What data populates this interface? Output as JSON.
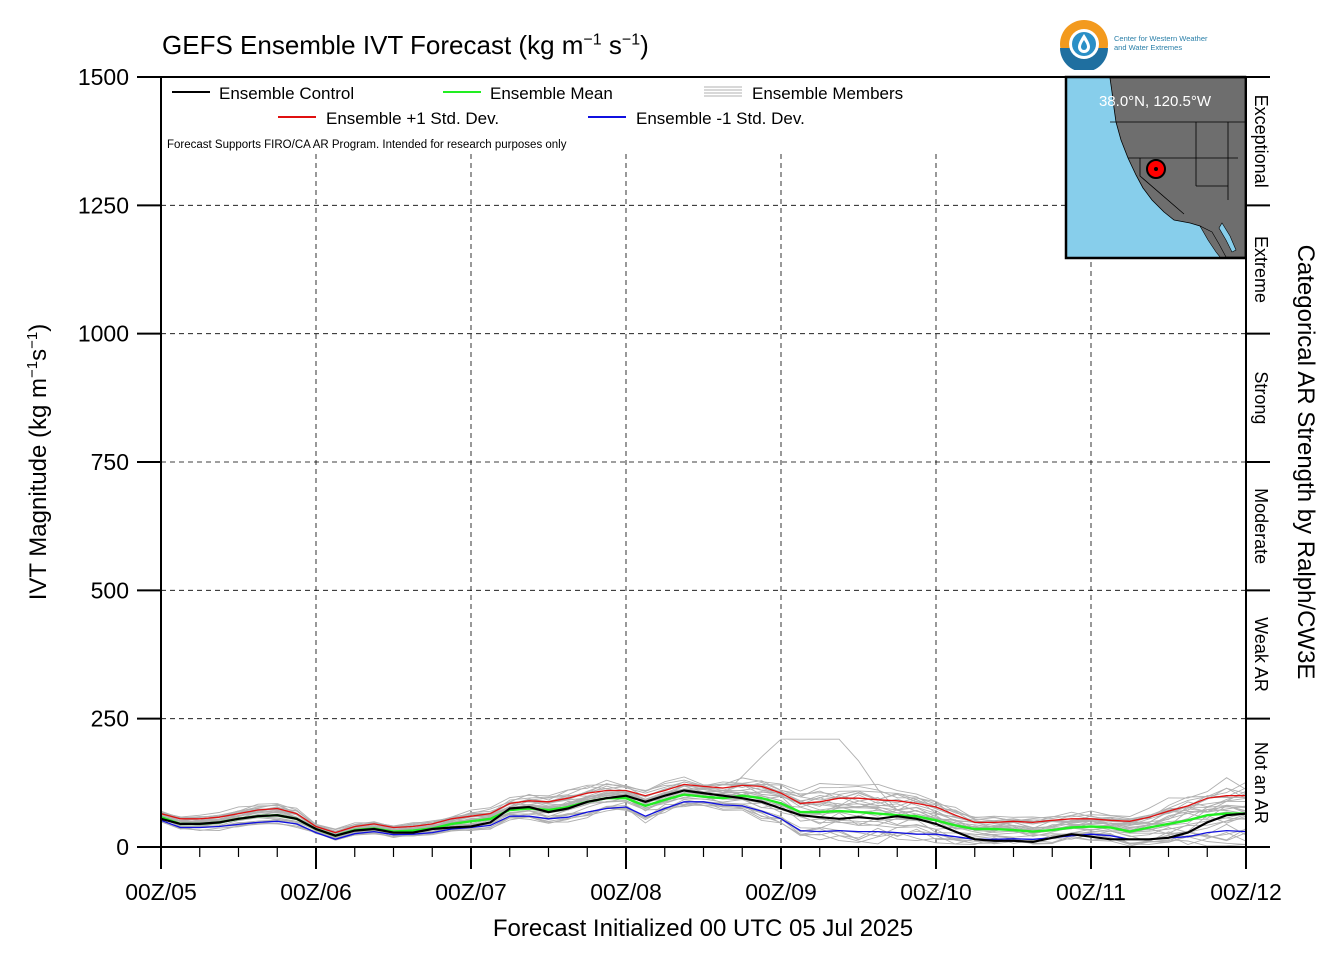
{
  "title": {
    "main": "GEFS Ensemble IVT Forecast (kg m",
    "sup1": "−1",
    "mid": " s",
    "sup2": "−1",
    "end": ")"
  },
  "logo": {
    "line1": "Center for Western Weather",
    "line2": "and Water Extremes",
    "icon": "water-drop-icon"
  },
  "legend": {
    "control": "Ensemble Control",
    "mean": "Ensemble Mean",
    "members": "Ensemble Members",
    "plus_sd": "Ensemble +1 Std. Dev.",
    "minus_sd": "Ensemble -1 Std. Dev.",
    "note": "Forecast Supports FIRO/CA AR Program. Intended for research purposes only"
  },
  "inset": {
    "location_label": "38.0°N, 120.5°W",
    "lat": 38.0,
    "lon": -120.5
  },
  "right_axis": {
    "label": "Categorical AR Strength by Ralph/CW3E",
    "categories": [
      {
        "name": "Not an AR",
        "range": [
          0,
          250
        ]
      },
      {
        "name": "Weak AR",
        "range": [
          250,
          500
        ]
      },
      {
        "name": "Moderate",
        "range": [
          500,
          750
        ]
      },
      {
        "name": "Strong",
        "range": [
          750,
          1000
        ]
      },
      {
        "name": "Extreme",
        "range": [
          1000,
          1250
        ]
      },
      {
        "name": "Exceptional",
        "range": [
          1250,
          1500
        ]
      }
    ]
  },
  "colors": {
    "control": "#000000",
    "mean": "#22ee22",
    "members": "#b0b0b0",
    "plus_sd": "#e01010",
    "minus_sd": "#1010e0",
    "ocean": "#87ceeb",
    "land": "#6e6e6e",
    "marker": "#ff0000"
  },
  "chart_data": {
    "type": "line",
    "title": "GEFS Ensemble IVT Forecast (kg m−1 s−1)",
    "xlabel": "Forecast Initialized 00 UTC 05 Jul 2025",
    "ylabel": "IVT Magnitude (kg m−1s−1)",
    "ylim": [
      0,
      1500
    ],
    "yticks": [
      0,
      250,
      500,
      750,
      1000,
      1250,
      1500
    ],
    "xlim": [
      0,
      168
    ],
    "xticks": [
      0,
      24,
      48,
      72,
      96,
      120,
      144,
      168
    ],
    "xtick_labels": [
      "00Z/05",
      "00Z/06",
      "00Z/07",
      "00Z/08",
      "00Z/09",
      "00Z/10",
      "00Z/11",
      "00Z/12"
    ],
    "x_units": "forecast hour",
    "grid": true,
    "x": [
      0,
      3,
      6,
      9,
      12,
      15,
      18,
      21,
      24,
      27,
      30,
      33,
      36,
      39,
      42,
      45,
      48,
      51,
      54,
      57,
      60,
      63,
      66,
      69,
      72,
      75,
      78,
      81,
      84,
      87,
      90,
      93,
      96,
      99,
      102,
      105,
      108,
      111,
      114,
      117,
      120,
      123,
      126,
      129,
      132,
      135,
      138,
      141,
      144,
      147,
      150,
      153,
      156,
      159,
      162,
      165,
      168
    ],
    "series": [
      {
        "name": "Ensemble +1 Std. Dev.",
        "values": [
          65,
          55,
          55,
          58,
          65,
          72,
          75,
          65,
          40,
          28,
          40,
          45,
          38,
          40,
          45,
          55,
          60,
          65,
          85,
          90,
          88,
          95,
          105,
          110,
          110,
          100,
          110,
          122,
          118,
          115,
          120,
          118,
          105,
          85,
          88,
          95,
          95,
          92,
          90,
          85,
          78,
          62,
          48,
          48,
          50,
          48,
          52,
          55,
          55,
          52,
          50,
          58,
          70,
          80,
          95,
          100,
          100
        ]
      },
      {
        "name": "Ensemble Mean",
        "values": [
          58,
          45,
          45,
          48,
          55,
          60,
          62,
          55,
          35,
          22,
          33,
          36,
          30,
          32,
          36,
          45,
          50,
          55,
          72,
          75,
          72,
          78,
          88,
          95,
          95,
          80,
          92,
          102,
          98,
          95,
          100,
          95,
          85,
          68,
          68,
          70,
          68,
          65,
          62,
          60,
          52,
          42,
          35,
          35,
          33,
          30,
          33,
          38,
          40,
          38,
          30,
          38,
          45,
          52,
          62,
          65,
          65
        ]
      },
      {
        "name": "Ensemble -1 Std. Dev.",
        "values": [
          52,
          38,
          38,
          40,
          44,
          48,
          50,
          45,
          28,
          15,
          26,
          30,
          24,
          25,
          28,
          35,
          38,
          42,
          60,
          60,
          55,
          58,
          68,
          75,
          78,
          60,
          75,
          88,
          88,
          82,
          80,
          70,
          55,
          32,
          30,
          32,
          30,
          30,
          28,
          25,
          25,
          20,
          15,
          15,
          16,
          15,
          18,
          22,
          25,
          22,
          15,
          15,
          18,
          20,
          28,
          32,
          30
        ]
      },
      {
        "name": "Ensemble Control",
        "values": [
          55,
          45,
          45,
          48,
          55,
          60,
          62,
          55,
          35,
          22,
          32,
          35,
          28,
          28,
          35,
          38,
          40,
          48,
          75,
          78,
          68,
          75,
          88,
          95,
          100,
          88,
          100,
          110,
          105,
          100,
          95,
          88,
          75,
          62,
          58,
          55,
          58,
          55,
          60,
          55,
          45,
          30,
          15,
          12,
          12,
          10,
          18,
          25,
          20,
          15,
          15,
          15,
          18,
          28,
          48,
          62,
          65
        ]
      },
      {
        "name": "Ensemble Members",
        "values": [
          60,
          48,
          48,
          50,
          58,
          64,
          66,
          58,
          36,
          24,
          34,
          38,
          32,
          34,
          38,
          46,
          52,
          56,
          74,
          78,
          74,
          80,
          92,
          100,
          98,
          84,
          96,
          108,
          104,
          100,
          102,
          98,
          88,
          70,
          70,
          72,
          70,
          68,
          66,
          62,
          56,
          44,
          36,
          36,
          35,
          32,
          36,
          40,
          42,
          40,
          34,
          40,
          48,
          56,
          66,
          70,
          70
        ]
      }
    ],
    "member_outlier_peak": {
      "x_range": [
        87,
        114
      ],
      "max_value": 210
    },
    "ensemble_member_count": 30
  }
}
